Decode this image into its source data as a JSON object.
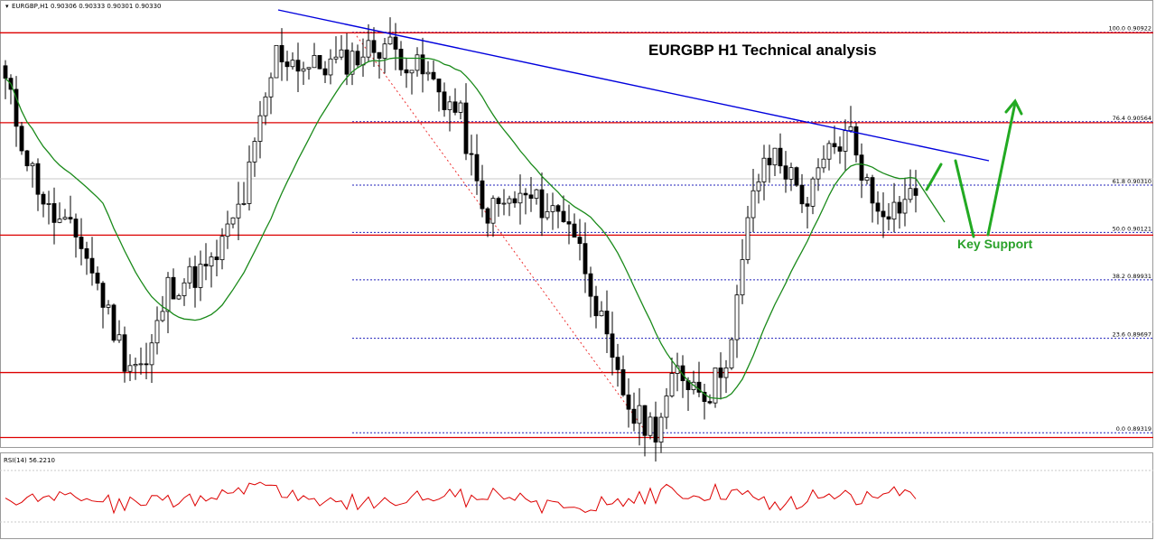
{
  "header": {
    "symbol_info": "EURGBP,H1  0.90306 0.90333 0.90301 0.90330",
    "rsi_info": "RSI(14) 56.2210"
  },
  "title": "EURGBP H1 Technical analysis",
  "annotation": "Key Support",
  "colors": {
    "up_candle": "#000000",
    "down_candle": "#000000",
    "ma": "#1a8a1a",
    "trendline": "#0000dd",
    "horizontal_levels": "#dd0000",
    "fib_lines": "#2222bb",
    "rsi": "#dd0000",
    "arrows": "#22aa22"
  },
  "chart_data": [
    {
      "type": "candlestick",
      "symbol": "EURGBP",
      "timeframe": "H1",
      "ylim": [
        0.8928,
        0.9095
      ],
      "fib_levels": [
        {
          "label": "100.0 0.90922",
          "value": 0.90922,
          "dx": 0
        },
        {
          "label": "76.4 0.90564",
          "value": 0.90564,
          "dx": 0
        },
        {
          "label": "61.8 0.90310",
          "value": 0.9031,
          "dx": 0
        },
        {
          "label": "50.0 0.90121",
          "value": 0.90121,
          "dx": 0
        },
        {
          "label": "38.2 0.89931",
          "value": 0.89931,
          "dx": 0
        },
        {
          "label": "23.6 0.89697",
          "value": 0.89697,
          "dx": 0
        },
        {
          "label": "0.0 0.89319",
          "value": 0.89319,
          "dx": 0
        }
      ],
      "horizontal_levels": [
        0.9092,
        0.9056,
        0.9011,
        0.8956,
        0.893
      ],
      "trendline": {
        "from": [
          0,
          0.9098
        ],
        "to": [
          155,
          0.9038
        ]
      },
      "series": [
        {
          "name": "price",
          "key_points": [
            [
              0,
              0.9072
            ],
            [
              4,
              0.9042
            ],
            [
              8,
              0.902
            ],
            [
              14,
              0.9008
            ],
            [
              22,
              0.8962
            ],
            [
              26,
              0.8958
            ],
            [
              30,
              0.899
            ],
            [
              38,
              0.8998
            ],
            [
              44,
              0.9026
            ],
            [
              50,
              0.9084
            ],
            [
              56,
              0.9078
            ],
            [
              62,
              0.908
            ],
            [
              70,
              0.9088
            ],
            [
              78,
              0.9074
            ],
            [
              84,
              0.9058
            ],
            [
              88,
              0.902
            ],
            [
              96,
              0.9026
            ],
            [
              104,
              0.9018
            ],
            [
              108,
              0.8992
            ],
            [
              112,
              0.8958
            ],
            [
              116,
              0.8938
            ],
            [
              120,
              0.8934
            ],
            [
              124,
              0.8956
            ],
            [
              130,
              0.8948
            ],
            [
              134,
              0.8968
            ],
            [
              138,
              0.903
            ],
            [
              142,
              0.9044
            ],
            [
              148,
              0.9024
            ],
            [
              152,
              0.9044
            ],
            [
              156,
              0.9052
            ],
            [
              160,
              0.9024
            ],
            [
              164,
              0.9022
            ],
            [
              168,
              0.9028
            ]
          ]
        }
      ]
    },
    {
      "type": "line",
      "indicator": "RSI(14)",
      "value": 56.221
    }
  ]
}
